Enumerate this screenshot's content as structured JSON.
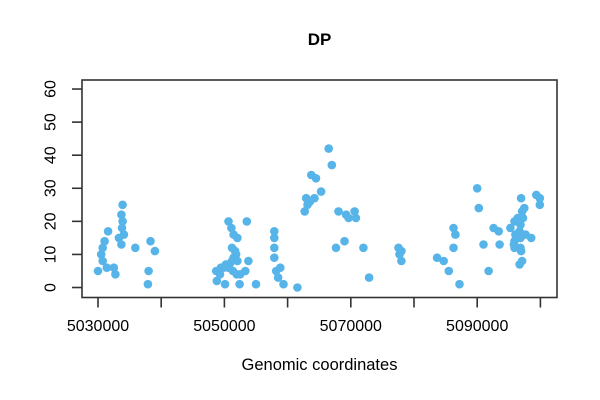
{
  "colors": {
    "point": "#56B4E9",
    "axis": "#333333",
    "text": "#000000",
    "background": "#FFFFFF"
  },
  "chart_data": {
    "type": "scatter",
    "title": "DP",
    "xlabel": "Genomic coordinates",
    "ylabel": "",
    "grid": false,
    "legend": null,
    "ylim": [
      0,
      60
    ],
    "xlim": [
      5030000,
      5100000
    ],
    "y_ticks": [
      0,
      10,
      20,
      30,
      40,
      50,
      60
    ],
    "y_tick_labels": [
      "0",
      "10",
      "20",
      "30",
      "40",
      "50",
      "60"
    ],
    "x_ticks": [
      5030000,
      5040000,
      5050000,
      5060000,
      5070000,
      5080000,
      5090000,
      5100000
    ],
    "x_tick_labels": [
      "5030000",
      "",
      "5050000",
      "",
      "5070000",
      "",
      "5090000",
      ""
    ],
    "points": [
      [
        5030000,
        5
      ],
      [
        5030500,
        10
      ],
      [
        5030750,
        12
      ],
      [
        5030750,
        8
      ],
      [
        5031050,
        14
      ],
      [
        5031400,
        6
      ],
      [
        5031600,
        17
      ],
      [
        5032500,
        6
      ],
      [
        5032750,
        4
      ],
      [
        5033300,
        15
      ],
      [
        5033700,
        22
      ],
      [
        5033700,
        13
      ],
      [
        5033800,
        18
      ],
      [
        5033900,
        25
      ],
      [
        5033900,
        20
      ],
      [
        5034100,
        16
      ],
      [
        5035900,
        12
      ],
      [
        5037900,
        1
      ],
      [
        5038000,
        5
      ],
      [
        5038300,
        14
      ],
      [
        5039000,
        11
      ],
      [
        5048700,
        5
      ],
      [
        5048800,
        2
      ],
      [
        5049050,
        5
      ],
      [
        5049300,
        4
      ],
      [
        5049450,
        6
      ],
      [
        5049850,
        6
      ],
      [
        5050100,
        1
      ],
      [
        5050250,
        7
      ],
      [
        5050650,
        20
      ],
      [
        5050650,
        6
      ],
      [
        5050800,
        7
      ],
      [
        5051100,
        18
      ],
      [
        5051200,
        12
      ],
      [
        5051200,
        8
      ],
      [
        5051350,
        5
      ],
      [
        5051450,
        16
      ],
      [
        5051450,
        9
      ],
      [
        5051700,
        11
      ],
      [
        5051850,
        10
      ],
      [
        5051950,
        4
      ],
      [
        5052050,
        15
      ],
      [
        5052050,
        8
      ],
      [
        5052400,
        1
      ],
      [
        5052500,
        4
      ],
      [
        5053300,
        5
      ],
      [
        5053550,
        20
      ],
      [
        5053800,
        8
      ],
      [
        5055000,
        1
      ],
      [
        5057900,
        17
      ],
      [
        5057900,
        15
      ],
      [
        5057900,
        12
      ],
      [
        5057900,
        9
      ],
      [
        5058200,
        5
      ],
      [
        5058500,
        3
      ],
      [
        5058850,
        6
      ],
      [
        5059350,
        1
      ],
      [
        5061550,
        0
      ],
      [
        5062700,
        23
      ],
      [
        5062950,
        27
      ],
      [
        5063150,
        25
      ],
      [
        5063550,
        26
      ],
      [
        5063750,
        34
      ],
      [
        5064250,
        27
      ],
      [
        5064500,
        33
      ],
      [
        5065300,
        29
      ],
      [
        5066500,
        42
      ],
      [
        5067000,
        37
      ],
      [
        5067650,
        12
      ],
      [
        5068050,
        23
      ],
      [
        5069000,
        14
      ],
      [
        5069250,
        22
      ],
      [
        5069650,
        21
      ],
      [
        5070600,
        23
      ],
      [
        5070800,
        21
      ],
      [
        5072000,
        12
      ],
      [
        5072900,
        3
      ],
      [
        5077550,
        12
      ],
      [
        5077700,
        10
      ],
      [
        5078000,
        11
      ],
      [
        5078000,
        8
      ],
      [
        5083650,
        9
      ],
      [
        5084700,
        8
      ],
      [
        5085500,
        5
      ],
      [
        5086250,
        18
      ],
      [
        5086250,
        12
      ],
      [
        5086550,
        16
      ],
      [
        5087200,
        1
      ],
      [
        5090000,
        30
      ],
      [
        5090250,
        24
      ],
      [
        5091000,
        13
      ],
      [
        5091800,
        5
      ],
      [
        5092600,
        18
      ],
      [
        5093400,
        17
      ],
      [
        5093550,
        13
      ],
      [
        5095250,
        18
      ],
      [
        5095800,
        13
      ],
      [
        5095900,
        20
      ],
      [
        5095900,
        14
      ],
      [
        5095900,
        12
      ],
      [
        5096050,
        16
      ],
      [
        5096400,
        21
      ],
      [
        5096700,
        17
      ],
      [
        5096700,
        7
      ],
      [
        5096850,
        19
      ],
      [
        5096850,
        15
      ],
      [
        5096850,
        12
      ],
      [
        5096950,
        27
      ],
      [
        5096950,
        11
      ],
      [
        5097100,
        23
      ],
      [
        5097100,
        8
      ],
      [
        5097250,
        21
      ],
      [
        5097450,
        24
      ],
      [
        5097650,
        16
      ],
      [
        5098550,
        15
      ],
      [
        5099350,
        28
      ],
      [
        5099900,
        27
      ],
      [
        5099900,
        25
      ]
    ]
  }
}
